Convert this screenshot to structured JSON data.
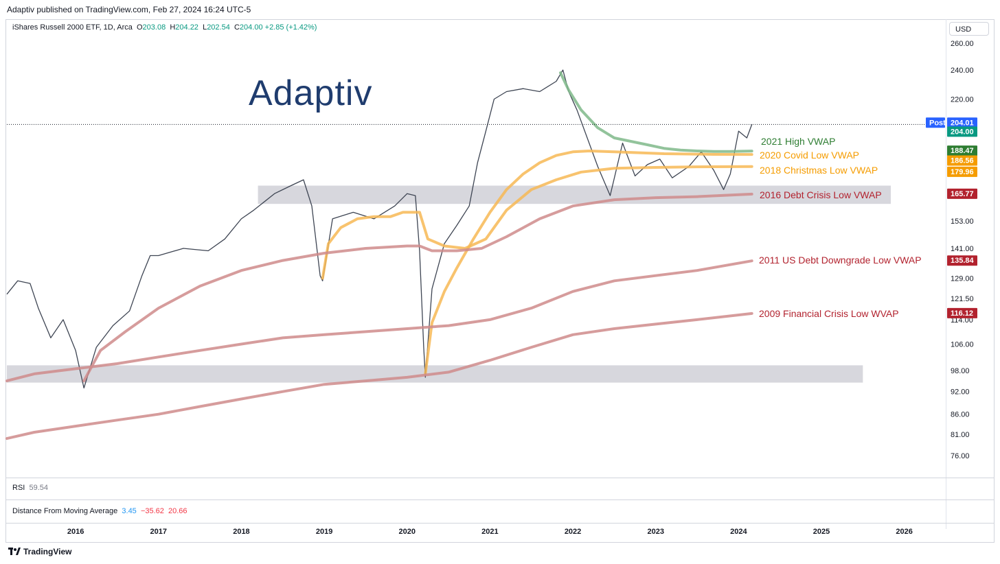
{
  "header": {
    "published": "Adaptiv published on TradingView.com, Feb 27, 2024 16:24 UTC-5"
  },
  "legend": {
    "symbol": "iShares Russell 2000 ETF, 1D, Arca",
    "o_label": "O",
    "o": "203.08",
    "h_label": "H",
    "h": "204.22",
    "l_label": "L",
    "l": "202.54",
    "c_label": "C",
    "c": "204.00",
    "change": "+2.85 (+1.42%)"
  },
  "currency_button": "USD",
  "logo_text": "Adaptiv",
  "rsi": {
    "label": "RSI",
    "value": "59.54"
  },
  "dfma": {
    "label": "Distance From Moving Average",
    "v1": "3.45",
    "v2": "−35.62",
    "v3": "20.66"
  },
  "footer": {
    "brand": "TradingView"
  },
  "colors": {
    "up": "#089981",
    "down": "#f23645",
    "green_vwap": "#7fb98a",
    "orange_vwap": "#f7b955",
    "red_vwap": "#cf8b8b",
    "band": "#c9cad1",
    "label_green": "#2e7d32",
    "label_orange": "#f59c00",
    "label_red": "#b2222e"
  },
  "price_badges": {
    "post_label": "Post",
    "post_value": "204.01",
    "last_value": "204.00",
    "green": "188.47",
    "orange1": "186.56",
    "orange2": "179.96",
    "red1": "165.77",
    "red2": "135.84",
    "red3": "116.12"
  },
  "annotations": {
    "high2021": "2021 High VWAP",
    "covid2020": "2020 Covid Low VWAP",
    "christmas2018": "2018 Christmas Low VWAP",
    "debt2016": "2016 Debt Crisis Low VWAP",
    "downgrade2011": "2011 US Debt Downgrade Low VWAP",
    "fin2009": "2009 Financial Crisis Low WVAP"
  },
  "chart_data": {
    "type": "line",
    "scale": "log",
    "price_ticks": [
      260,
      240,
      220,
      200,
      188,
      179,
      165,
      153,
      141,
      129,
      121.5,
      114,
      106,
      98,
      92,
      86,
      81,
      76
    ],
    "price_tick_labels": [
      "260.00",
      "240.00",
      "220.00",
      "",
      "",
      "",
      "",
      "153.00",
      "141.00",
      "129.00",
      "121.50",
      "114.00",
      "106.00",
      "98.00",
      "92.00",
      "86.00",
      "81.00",
      "76.00"
    ],
    "x_labels": [
      "2016",
      "2017",
      "2018",
      "2019",
      "2020",
      "2021",
      "2022",
      "2023",
      "2024",
      "2025",
      "2026"
    ],
    "x_years": [
      2016,
      2017,
      2018,
      2019,
      2020,
      2021,
      2022,
      2023,
      2024,
      2025,
      2026
    ],
    "x_range": [
      2015.17,
      2026.5
    ],
    "price_range": [
      71.5,
      268
    ],
    "price": {
      "x": [
        2015.17,
        2015.3,
        2015.45,
        2015.55,
        2015.7,
        2015.85,
        2016.0,
        2016.1,
        2016.25,
        2016.45,
        2016.65,
        2016.8,
        2016.9,
        2017.0,
        2017.3,
        2017.6,
        2017.8,
        2018.0,
        2018.15,
        2018.4,
        2018.6,
        2018.75,
        2018.85,
        2018.95,
        2018.98,
        2019.1,
        2019.35,
        2019.6,
        2019.85,
        2020.0,
        2020.1,
        2020.15,
        2020.2,
        2020.22,
        2020.3,
        2020.45,
        2020.6,
        2020.75,
        2020.85,
        2020.95,
        2021.05,
        2021.2,
        2021.4,
        2021.6,
        2021.8,
        2021.88,
        2021.95,
        2022.05,
        2022.3,
        2022.45,
        2022.6,
        2022.75,
        2022.9,
        2023.05,
        2023.2,
        2023.4,
        2023.55,
        2023.7,
        2023.82,
        2023.9,
        2024.0,
        2024.1,
        2024.16
      ],
      "y": [
        123,
        128,
        127,
        118,
        108,
        114,
        104,
        93,
        105,
        112,
        117,
        130,
        138,
        138,
        141,
        140,
        145,
        154,
        158,
        166,
        170,
        173,
        160,
        130,
        128,
        154,
        157,
        154,
        160,
        166,
        165,
        140,
        105,
        96,
        125,
        143,
        151,
        160,
        182,
        200,
        220,
        225,
        227,
        225,
        232,
        240,
        225,
        213,
        180,
        165,
        193,
        175,
        181,
        184,
        174,
        180,
        188,
        178,
        168,
        176,
        200,
        196,
        204
      ]
    },
    "series": [
      {
        "name": "2021 High VWAP",
        "x": [
          2021.85,
          2021.95,
          2022.1,
          2022.3,
          2022.5,
          2022.7,
          2022.9,
          2023.1,
          2023.3,
          2023.5,
          2023.7,
          2023.9,
          2024.16
        ],
        "y": [
          238,
          226,
          213,
          202,
          196,
          194,
          192,
          190,
          189,
          188.5,
          188.2,
          188.2,
          188.47
        ]
      },
      {
        "name": "2020 Covid Low VWAP",
        "x": [
          2020.22,
          2020.3,
          2020.45,
          2020.6,
          2020.8,
          2021.0,
          2021.2,
          2021.4,
          2021.6,
          2021.8,
          2022.0,
          2022.2,
          2022.5,
          2022.8,
          2023.1,
          2023.4,
          2023.7,
          2024.16
        ],
        "y": [
          97,
          113,
          124,
          133,
          145,
          157,
          168,
          176,
          182,
          186,
          188,
          188.5,
          188,
          187.5,
          187,
          186.8,
          186.6,
          186.56
        ]
      },
      {
        "name": "2018 Christmas Low VWAP",
        "x": [
          2018.98,
          2019.05,
          2019.2,
          2019.4,
          2019.6,
          2019.8,
          2019.95,
          2020.15,
          2020.25,
          2020.45,
          2020.7,
          2020.95,
          2021.2,
          2021.5,
          2021.8,
          2022.1,
          2022.5,
          2023.0,
          2023.5,
          2024.16
        ],
        "y": [
          129,
          143,
          150,
          154,
          155,
          155,
          157,
          157,
          145,
          142,
          141,
          145,
          158,
          168,
          173,
          177,
          179,
          179.5,
          179.8,
          179.96
        ]
      },
      {
        "name": "2016 Debt Crisis Low VWAP",
        "x": [
          2016.1,
          2016.3,
          2016.6,
          2017.0,
          2017.5,
          2018.0,
          2018.5,
          2019.0,
          2019.5,
          2020.0,
          2020.15,
          2020.3,
          2020.6,
          2020.9,
          2021.2,
          2021.6,
          2022.0,
          2022.5,
          2023.0,
          2023.5,
          2024.16
        ],
        "y": [
          95,
          104,
          110,
          118,
          126,
          132,
          136,
          139,
          141,
          142,
          142,
          140,
          140,
          141,
          146,
          154,
          160,
          163,
          164,
          164.5,
          165.77
        ]
      },
      {
        "name": "2011 US Debt Downgrade Low VWAP",
        "x": [
          2015.17,
          2015.5,
          2016.0,
          2016.5,
          2017.0,
          2017.5,
          2018.0,
          2018.5,
          2019.0,
          2019.5,
          2020.0,
          2020.5,
          2021.0,
          2021.5,
          2022.0,
          2022.5,
          2023.0,
          2023.5,
          2024.16
        ],
        "y": [
          95,
          97,
          98.5,
          100,
          102,
          104,
          106,
          108,
          109,
          110,
          111,
          112,
          114,
          118,
          124,
          128,
          130,
          132,
          135.84
        ]
      },
      {
        "name": "2009 Financial Crisis Low WVAP",
        "x": [
          2015.17,
          2015.5,
          2016.0,
          2016.5,
          2017.0,
          2017.5,
          2018.0,
          2018.5,
          2019.0,
          2019.5,
          2020.0,
          2020.5,
          2021.0,
          2021.5,
          2022.0,
          2022.5,
          2023.0,
          2023.5,
          2024.16
        ],
        "y": [
          80,
          81.5,
          83,
          84.5,
          86,
          88,
          90,
          92,
          94,
          95,
          96,
          97.5,
          101,
          105,
          109,
          111,
          112.5,
          114,
          116.12
        ]
      }
    ],
    "bands": [
      {
        "x": [
          2018.2,
          2028.0
        ],
        "y": [
          161,
          170
        ]
      },
      {
        "x": [
          2015.17,
          2025.5
        ],
        "y": [
          94.5,
          99.5
        ]
      }
    ],
    "last_price": 204.0
  }
}
